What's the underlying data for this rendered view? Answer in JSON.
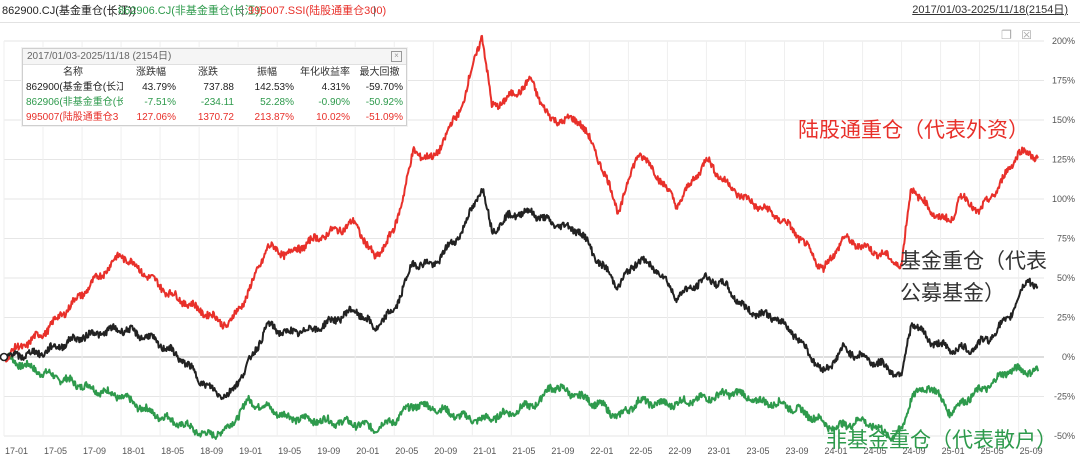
{
  "legend": {
    "items": [
      {
        "text": "862900.CJ(基金重仓(长江))",
        "color": "#222222"
      },
      {
        "text": "862906.CJ(非基金重仓(长江))",
        "color": "#2e9a4c"
      },
      {
        "text": "995007.SSI(陆股通重仓300)",
        "color": "#e8302a"
      }
    ],
    "separator": "|",
    "range": "2017/01/03-2025/11/18(2154日)"
  },
  "stats_panel": {
    "title": "2017/01/03-2025/11/18 (2154日)",
    "close_glyph": "×",
    "headers": [
      "名称",
      "涨跌幅",
      "涨跌",
      "振幅",
      "年化收益率",
      "最大回撤"
    ],
    "rows": [
      {
        "name": "862900(基金重仓(长江",
        "change_pct": "43.79%",
        "change": "737.88",
        "amplitude": "142.53%",
        "annual": "4.31%",
        "max_dd": "-59.70%",
        "color": "#222222"
      },
      {
        "name": "862906(非基金重仓(长",
        "change_pct": "-7.51%",
        "change": "-234.11",
        "amplitude": "52.28%",
        "annual": "-0.90%",
        "max_dd": "-50.92%",
        "color": "#2e9a4c"
      },
      {
        "name": "995007(陆股通重仓3",
        "change_pct": "127.06%",
        "change": "1370.72",
        "amplitude": "213.87%",
        "annual": "10.02%",
        "max_dd": "-51.09%",
        "color": "#e8302a"
      }
    ]
  },
  "annotations": {
    "red": "陆股通重仓（代表外资）",
    "black_line1": "基金重仓（代表",
    "black_line2": "公募基金）",
    "green": "非基金重仓（代表散户）"
  },
  "chart_data": {
    "type": "line",
    "y_unit": "%",
    "ylim": [
      -50,
      200
    ],
    "y_ticks": [
      "200%",
      "175%",
      "150%",
      "125%",
      "100%",
      "75%",
      "50%",
      "25%",
      "0%",
      "-25%",
      "-50%"
    ],
    "x_ticks": [
      "17-01",
      "17-05",
      "17-09",
      "18-01",
      "18-05",
      "18-09",
      "19-01",
      "19-05",
      "19-09",
      "20-01",
      "20-05",
      "20-09",
      "21-01",
      "21-05",
      "21-09",
      "22-01",
      "22-05",
      "22-09",
      "23-01",
      "23-05",
      "23-09",
      "24-01",
      "24-05",
      "24-09",
      "25-01",
      "25-05",
      "25-09"
    ],
    "grid": true,
    "series": [
      {
        "name": "995007.SSI(陆股通重仓300)",
        "color": "#e8302a",
        "points": [
          [
            "17-01",
            0
          ],
          [
            "17-05",
            15
          ],
          [
            "17-09",
            40
          ],
          [
            "18-01",
            65
          ],
          [
            "18-03",
            55
          ],
          [
            "18-06",
            40
          ],
          [
            "18-09",
            30
          ],
          [
            "18-12",
            20
          ],
          [
            "19-02",
            40
          ],
          [
            "19-04",
            70
          ],
          [
            "19-06",
            65
          ],
          [
            "19-09",
            75
          ],
          [
            "20-01",
            85
          ],
          [
            "20-03",
            62
          ],
          [
            "20-05",
            80
          ],
          [
            "20-07",
            130
          ],
          [
            "20-09",
            125
          ],
          [
            "20-12",
            160
          ],
          [
            "21-02",
            205
          ],
          [
            "21-03",
            158
          ],
          [
            "21-05",
            165
          ],
          [
            "21-07",
            175
          ],
          [
            "21-09",
            150
          ],
          [
            "21-12",
            150
          ],
          [
            "22-02",
            125
          ],
          [
            "22-04",
            92
          ],
          [
            "22-06",
            130
          ],
          [
            "22-08",
            115
          ],
          [
            "22-10",
            96
          ],
          [
            "23-01",
            125
          ],
          [
            "23-03",
            110
          ],
          [
            "23-05",
            100
          ],
          [
            "23-08",
            90
          ],
          [
            "23-10",
            80
          ],
          [
            "24-01",
            55
          ],
          [
            "24-03",
            75
          ],
          [
            "24-07",
            65
          ],
          [
            "24-09",
            58
          ],
          [
            "24-10",
            108
          ],
          [
            "24-12",
            92
          ],
          [
            "25-02",
            85
          ],
          [
            "25-03",
            102
          ],
          [
            "25-05",
            92
          ],
          [
            "25-07",
            108
          ],
          [
            "25-09",
            130
          ],
          [
            "25-11",
            127
          ]
        ]
      },
      {
        "name": "862900.CJ(基金重仓(长江))",
        "color": "#222222",
        "points": [
          [
            "17-01",
            0
          ],
          [
            "17-05",
            3
          ],
          [
            "17-09",
            13
          ],
          [
            "18-01",
            18
          ],
          [
            "18-04",
            12
          ],
          [
            "18-07",
            0
          ],
          [
            "18-10",
            -20
          ],
          [
            "18-12",
            -25
          ],
          [
            "19-02",
            -5
          ],
          [
            "19-04",
            20
          ],
          [
            "19-06",
            15
          ],
          [
            "19-09",
            18
          ],
          [
            "20-01",
            30
          ],
          [
            "20-03",
            18
          ],
          [
            "20-05",
            30
          ],
          [
            "20-07",
            60
          ],
          [
            "20-09",
            58
          ],
          [
            "20-12",
            80
          ],
          [
            "21-02",
            108
          ],
          [
            "21-03",
            80
          ],
          [
            "21-05",
            90
          ],
          [
            "21-07",
            92
          ],
          [
            "21-09",
            85
          ],
          [
            "21-12",
            80
          ],
          [
            "22-02",
            60
          ],
          [
            "22-04",
            45
          ],
          [
            "22-06",
            62
          ],
          [
            "22-08",
            55
          ],
          [
            "22-10",
            38
          ],
          [
            "23-01",
            50
          ],
          [
            "23-03",
            45
          ],
          [
            "23-05",
            30
          ],
          [
            "23-08",
            25
          ],
          [
            "23-10",
            15
          ],
          [
            "24-01",
            -10
          ],
          [
            "24-03",
            5
          ],
          [
            "24-07",
            -5
          ],
          [
            "24-09",
            -12
          ],
          [
            "24-10",
            22
          ],
          [
            "24-12",
            10
          ],
          [
            "25-02",
            5
          ],
          [
            "25-04",
            5
          ],
          [
            "25-06",
            12
          ],
          [
            "25-08",
            25
          ],
          [
            "25-10",
            50
          ],
          [
            "25-11",
            44
          ]
        ]
      },
      {
        "name": "862906.CJ(非基金重仓(长江))",
        "color": "#2e9a4c",
        "points": [
          [
            "17-01",
            0
          ],
          [
            "17-05",
            -10
          ],
          [
            "17-09",
            -18
          ],
          [
            "18-01",
            -25
          ],
          [
            "18-04",
            -35
          ],
          [
            "18-07",
            -42
          ],
          [
            "18-10",
            -50
          ],
          [
            "18-12",
            -45
          ],
          [
            "19-02",
            -28
          ],
          [
            "19-04",
            -32
          ],
          [
            "19-06",
            -38
          ],
          [
            "19-09",
            -40
          ],
          [
            "20-01",
            -42
          ],
          [
            "20-03",
            -45
          ],
          [
            "20-05",
            -40
          ],
          [
            "20-07",
            -30
          ],
          [
            "20-09",
            -32
          ],
          [
            "20-12",
            -38
          ],
          [
            "21-02",
            -40
          ],
          [
            "21-05",
            -35
          ],
          [
            "21-08",
            -28
          ],
          [
            "21-09",
            -18
          ],
          [
            "21-12",
            -25
          ],
          [
            "22-02",
            -30
          ],
          [
            "22-04",
            -38
          ],
          [
            "22-06",
            -28
          ],
          [
            "22-09",
            -30
          ],
          [
            "23-01",
            -26
          ],
          [
            "23-04",
            -22
          ],
          [
            "23-06",
            -28
          ],
          [
            "23-09",
            -30
          ],
          [
            "23-12",
            -38
          ],
          [
            "24-02",
            -45
          ],
          [
            "24-05",
            -40
          ],
          [
            "24-08",
            -50
          ],
          [
            "24-09",
            -47
          ],
          [
            "24-10",
            -25
          ],
          [
            "24-12",
            -18
          ],
          [
            "25-02",
            -35
          ],
          [
            "25-04",
            -25
          ],
          [
            "25-06",
            -18
          ],
          [
            "25-08",
            -8
          ],
          [
            "25-11",
            -9
          ]
        ]
      }
    ]
  }
}
